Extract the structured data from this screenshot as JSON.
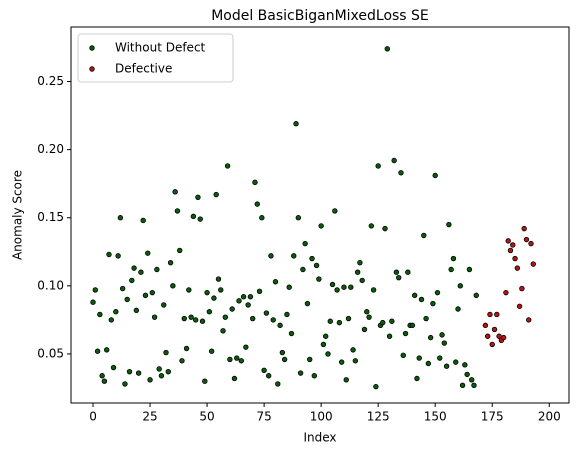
{
  "chart_data": {
    "type": "scatter",
    "title": "Model BasicBiganMixedLoss SE",
    "xlabel": "Index",
    "ylabel": "Anomaly Score",
    "xlim": [
      -9.65,
      208.65
    ],
    "ylim": [
      0.014,
      0.29
    ],
    "xticks": [
      0,
      25,
      50,
      75,
      100,
      125,
      150,
      175,
      200
    ],
    "yticks": [
      0.05,
      {
        "value": 0.1,
        "label": "0.10"
      },
      0.15,
      {
        "value": 0.2,
        "label": "0.20"
      },
      0.25
    ],
    "legend": "upper left",
    "series": [
      {
        "name": "Without Defect",
        "color": "#0a5c0a",
        "x": [
          0,
          1,
          2,
          3,
          4,
          5,
          6,
          7,
          8,
          9,
          10,
          11,
          12,
          13,
          14,
          15,
          16,
          17,
          18,
          19,
          20,
          21,
          22,
          23,
          24,
          25,
          26,
          27,
          28,
          29,
          30,
          31,
          32,
          33,
          34,
          35,
          36,
          37,
          38,
          39,
          40,
          41,
          42,
          43,
          44,
          45,
          46,
          47,
          48,
          49,
          50,
          51,
          52,
          53,
          54,
          55,
          56,
          57,
          58,
          59,
          60,
          61,
          62,
          63,
          64,
          65,
          66,
          67,
          68,
          69,
          70,
          71,
          72,
          73,
          74,
          75,
          76,
          77,
          78,
          79,
          80,
          81,
          82,
          83,
          84,
          85,
          86,
          87,
          88,
          89,
          90,
          91,
          92,
          93,
          94,
          95,
          96,
          97,
          98,
          99,
          100,
          101,
          102,
          103,
          104,
          105,
          106,
          107,
          108,
          109,
          110,
          111,
          112,
          113,
          114,
          115,
          116,
          117,
          118,
          119,
          120,
          121,
          122,
          123,
          124,
          125,
          126,
          127,
          128,
          129,
          130,
          131,
          132,
          133,
          134,
          135,
          136,
          137,
          138,
          139,
          140,
          141,
          142,
          143,
          144,
          145,
          146,
          147,
          148,
          149,
          150,
          151,
          152,
          153,
          154,
          155,
          156,
          157,
          158,
          159,
          160,
          161,
          162,
          163,
          164,
          165,
          166,
          167,
          168
        ],
        "values": [
          0.088,
          0.097,
          0.052,
          0.079,
          0.034,
          0.03,
          0.053,
          0.123,
          0.075,
          0.04,
          0.081,
          0.122,
          0.15,
          0.098,
          0.028,
          0.09,
          0.037,
          0.104,
          0.113,
          0.082,
          0.036,
          0.11,
          0.148,
          0.093,
          0.124,
          0.031,
          0.095,
          0.077,
          0.112,
          0.039,
          0.034,
          0.086,
          0.051,
          0.037,
          0.117,
          0.1,
          0.169,
          0.155,
          0.126,
          0.045,
          0.076,
          0.054,
          0.097,
          0.077,
          0.151,
          0.075,
          0.165,
          0.149,
          0.074,
          0.03,
          0.095,
          0.081,
          0.052,
          0.091,
          0.167,
          0.105,
          0.097,
          0.067,
          0.077,
          0.188,
          0.046,
          0.083,
          0.032,
          0.047,
          0.089,
          0.045,
          0.092,
          0.055,
          0.086,
          0.092,
          0.076,
          0.176,
          0.16,
          0.096,
          0.15,
          0.038,
          0.08,
          0.034,
          0.122,
          0.075,
          0.103,
          0.028,
          0.071,
          0.051,
          0.046,
          0.079,
          0.099,
          0.065,
          0.122,
          0.219,
          0.15,
          0.036,
          0.112,
          0.131,
          0.087,
          0.046,
          0.12,
          0.034,
          0.115,
          0.105,
          0.144,
          0.057,
          0.063,
          0.05,
          0.074,
          0.101,
          0.155,
          0.097,
          0.073,
          0.044,
          0.099,
          0.031,
          0.076,
          0.099,
          0.053,
          0.045,
          0.11,
          0.117,
          0.104,
          0.068,
          0.081,
          0.077,
          0.144,
          0.097,
          0.026,
          0.188,
          0.071,
          0.073,
          0.142,
          0.274,
          0.063,
          0.074,
          0.192,
          0.11,
          0.106,
          0.183,
          0.049,
          0.065,
          0.11,
          0.071,
          0.071,
          0.093,
          0.032,
          0.047,
          0.09,
          0.137,
          0.076,
          0.043,
          0.062,
          0.087,
          0.181,
          0.095,
          0.047,
          0.064,
          0.058,
          0.041,
          0.145,
          0.112,
          0.12,
          0.044,
          0.083,
          0.1,
          0.027,
          0.042,
          0.035,
          0.112,
          0.031,
          0.027,
          0.093
        ]
      },
      {
        "name": "Defective",
        "color": "#b81414",
        "x": [
          172,
          173,
          174,
          175,
          176,
          177,
          178,
          179,
          180,
          181,
          182,
          183,
          184,
          185,
          186,
          187,
          188,
          189,
          190,
          191,
          192,
          193
        ],
        "values": [
          0.071,
          0.063,
          0.079,
          0.057,
          0.068,
          0.079,
          0.063,
          0.06,
          0.062,
          0.095,
          0.133,
          0.126,
          0.13,
          0.12,
          0.113,
          0.085,
          0.098,
          0.142,
          0.134,
          0.075,
          0.131,
          0.116
        ]
      }
    ]
  }
}
